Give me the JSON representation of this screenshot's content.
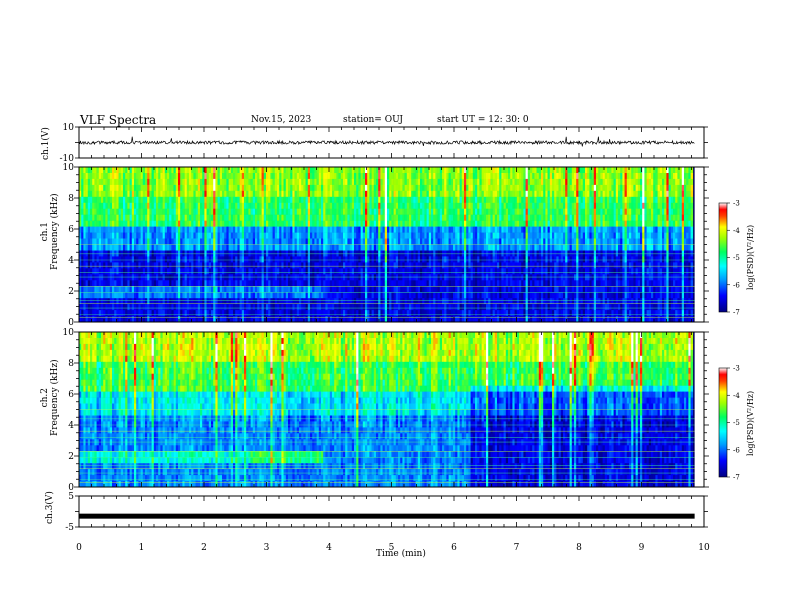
{
  "header": {
    "title": "VLF Spectra",
    "date": "Nov.15, 2023",
    "station": "station= OUJ",
    "start_ut": "start  UT =   12: 30: 0"
  },
  "chart_data": [
    {
      "type": "line",
      "panel": "ch1-waveform",
      "ylabel": "ch.1(V)",
      "ylim": [
        -10,
        10
      ],
      "yticks": [
        "10",
        "-10"
      ],
      "xlim": [
        0,
        10
      ],
      "baseline": 0
    },
    {
      "type": "heatmap",
      "panel": "ch1-spectrogram",
      "ylabel": "ch.1\nFrequency  (kHz)",
      "ylim": [
        0,
        10
      ],
      "yticks": [
        "0",
        "2",
        "4",
        "6",
        "8",
        "10"
      ],
      "xlim": [
        0,
        10
      ],
      "colorbar": {
        "label": "log(PSD)(V²/Hz)",
        "range": [
          -7,
          -3
        ],
        "ticks": [
          "-3",
          "-4",
          "-5",
          "-6",
          "-7"
        ]
      }
    },
    {
      "type": "heatmap",
      "panel": "ch2-spectrogram",
      "ylabel": "ch.2\nFrequency  (kHz)",
      "ylim": [
        0,
        10
      ],
      "yticks": [
        "0",
        "2",
        "4",
        "6",
        "8",
        "10"
      ],
      "xlim": [
        0,
        10
      ],
      "colorbar": {
        "label": "log(PSD)(V²/Hz)",
        "range": [
          -7,
          -3
        ],
        "ticks": [
          "-3",
          "-4",
          "-5",
          "-6",
          "-7"
        ]
      }
    },
    {
      "type": "line",
      "panel": "ch3-waveform",
      "ylabel": "ch.3(V)",
      "ylim": [
        -5,
        5
      ],
      "yticks": [
        "5",
        "-5"
      ],
      "xlim": [
        0,
        10
      ],
      "baseline": -1.5
    }
  ],
  "xaxis": {
    "label": "Time  (min)",
    "ticks": [
      "0",
      "1",
      "2",
      "3",
      "4",
      "5",
      "6",
      "7",
      "8",
      "9",
      "10"
    ],
    "data_end": 9.85
  },
  "colors": {
    "scale": [
      "#000080",
      "#0000ff",
      "#0080ff",
      "#00ffff",
      "#00ff80",
      "#80ff00",
      "#ffff00",
      "#ff8000",
      "#ff0000",
      "#ffffff"
    ],
    "axis": "#000000"
  }
}
